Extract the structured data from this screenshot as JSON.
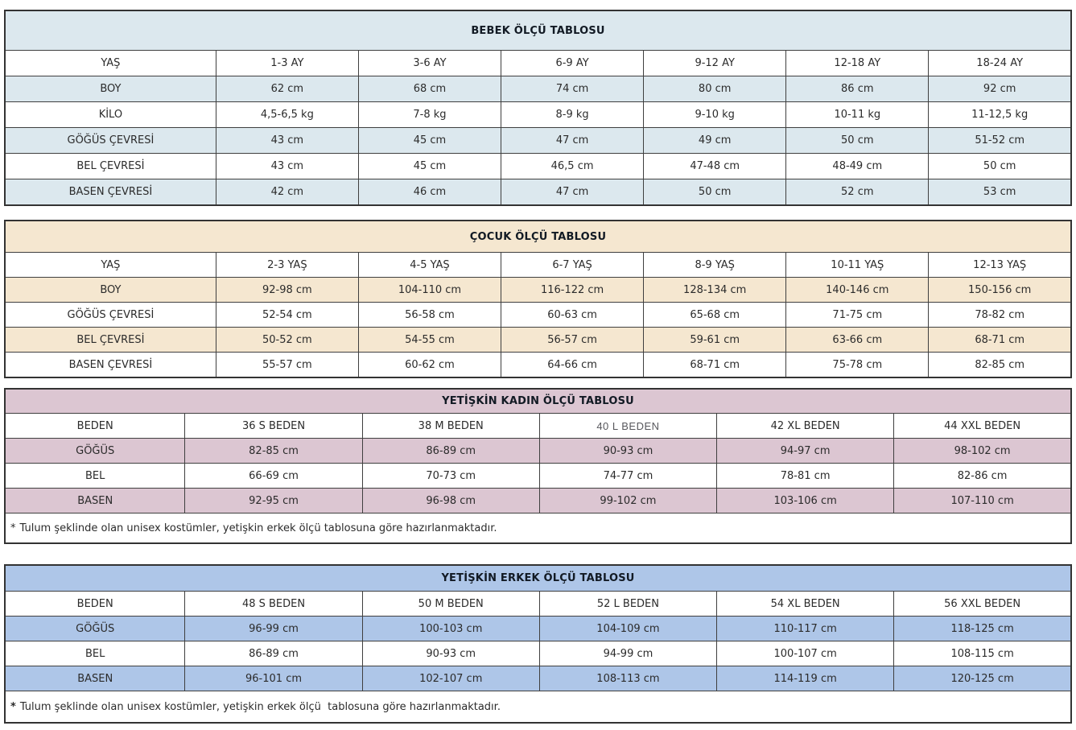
{
  "page": {
    "background": "#ffffff",
    "grid_border_color": "#3f3f3f",
    "title_text_color": "#121a24"
  },
  "tables": [
    {
      "id": "bebek",
      "title": "BEBEK ÖLÇÜ TABLOSU",
      "theme": {
        "header_bg": "#dce8ee",
        "band": "#dce8ee"
      },
      "rows": [
        [
          "YAŞ",
          "1-3 AY",
          "3-6 AY",
          "6-9 AY",
          "9-12 AY",
          "12-18 AY",
          "18-24 AY"
        ],
        [
          "BOY",
          "62 cm",
          "68 cm",
          "74 cm",
          "80 cm",
          "86 cm",
          "92 cm"
        ],
        [
          "KİLO",
          "4,5-6,5 kg",
          "7-8 kg",
          "8-9 kg",
          "9-10 kg",
          "10-11 kg",
          "11-12,5 kg"
        ],
        [
          "GÖĞÜS ÇEVRESİ",
          "43 cm",
          "45 cm",
          "47 cm",
          "49 cm",
          "50 cm",
          "51-52 cm"
        ],
        [
          "BEL ÇEVRESİ",
          "43 cm",
          "45 cm",
          "46,5 cm",
          "47-48 cm",
          "48-49 cm",
          "50 cm"
        ],
        [
          "BASEN ÇEVRESİ",
          "42 cm",
          "46 cm",
          "47 cm",
          "50 cm",
          "52 cm",
          "53 cm"
        ]
      ]
    },
    {
      "id": "cocuk",
      "title": "ÇOCUK ÖLÇÜ TABLOSU",
      "theme": {
        "header_bg": "#f5e7d0",
        "band": "#f5e7d0"
      },
      "rows": [
        [
          "YAŞ",
          "2-3 YAŞ",
          "4-5 YAŞ",
          "6-7 YAŞ",
          "8-9 YAŞ",
          "10-11 YAŞ",
          "12-13 YAŞ"
        ],
        [
          "BOY",
          "92-98 cm",
          "104-110 cm",
          "116-122 cm",
          "128-134 cm",
          "140-146 cm",
          "150-156 cm"
        ],
        [
          "GÖĞÜS ÇEVRESİ",
          "52-54 cm",
          "56-58 cm",
          "60-63 cm",
          "65-68 cm",
          "71-75 cm",
          "78-82 cm"
        ],
        [
          "BEL ÇEVRESİ",
          "50-52 cm",
          "54-55 cm",
          "56-57 cm",
          "59-61 cm",
          "63-66 cm",
          "68-71 cm"
        ],
        [
          "BASEN ÇEVRESİ",
          "55-57 cm",
          "60-62 cm",
          "64-66 cm",
          "68-71 cm",
          "75-78 cm",
          "82-85 cm"
        ]
      ]
    },
    {
      "id": "yetiskin-kadin",
      "title": "YETİŞKİN KADIN ÖLÇÜ TABLOSU",
      "theme": {
        "header_bg": "#dcc6d2",
        "band": "#dcc6d2"
      },
      "muted_cells": [
        "40 L BEDEN"
      ],
      "rows": [
        [
          "BEDEN",
          "36 S BEDEN",
          "38 M BEDEN",
          "40 L BEDEN",
          "42 XL BEDEN",
          "44 XXL BEDEN"
        ],
        [
          "GÖĞÜS",
          "82-85 cm",
          "86-89 cm",
          "90-93 cm",
          "94-97 cm",
          "98-102 cm"
        ],
        [
          "BEL",
          "66-69 cm",
          "70-73 cm",
          "74-77 cm",
          "78-81 cm",
          "82-86 cm"
        ],
        [
          "BASEN",
          "92-95 cm",
          "96-98 cm",
          "99-102 cm",
          "103-106 cm",
          "107-110 cm"
        ]
      ],
      "footnote_star": "*",
      "footnote_text": "Tulum şeklinde olan unisex kostümler, yetişkin erkek ölçü tablosuna göre hazırlanmaktadır.",
      "footnote_star_bold": false
    },
    {
      "id": "yetiskin-erkek",
      "title": "YETİŞKİN ERKEK ÖLÇÜ TABLOSU",
      "theme": {
        "header_bg": "#aec6e8",
        "band": "#aec6e8"
      },
      "rows": [
        [
          "BEDEN",
          "48 S BEDEN",
          "50 M BEDEN",
          "52 L BEDEN",
          "54 XL BEDEN",
          "56 XXL BEDEN"
        ],
        [
          "GÖĞÜS",
          "96-99 cm",
          "100-103 cm",
          "104-109 cm",
          "110-117 cm",
          "118-125 cm"
        ],
        [
          "BEL",
          "86-89 cm",
          "90-93 cm",
          "94-99 cm",
          "100-107 cm",
          "108-115 cm"
        ],
        [
          "BASEN",
          "96-101 cm",
          "102-107 cm",
          "108-113 cm",
          "114-119 cm",
          "120-125 cm"
        ]
      ],
      "footnote_star": "*",
      "footnote_text": "Tulum şeklinde olan unisex kostümler, yetişkin erkek ölçü  tablosuna göre hazırlanmaktadır.",
      "footnote_star_bold": true
    }
  ]
}
